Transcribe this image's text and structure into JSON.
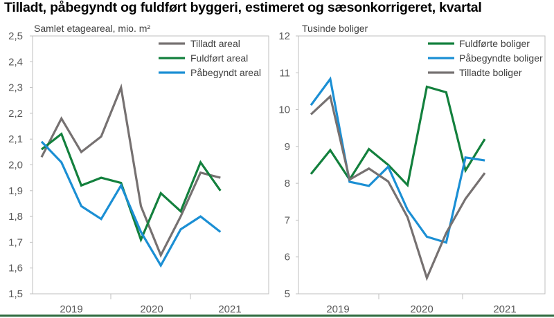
{
  "title": "Tilladt, påbegyndt og fuldført byggeri, estimeret og sæsonkorrigeret, kvartal",
  "chart_data": [
    {
      "type": "line",
      "ylabel": "Samlet etageareal, mio. m²",
      "ylim": [
        1.5,
        2.5
      ],
      "yticks": [
        "1,5",
        "1,6",
        "1,7",
        "1,8",
        "1,9",
        "2,0",
        "2,1",
        "2,2",
        "2,3",
        "2,4",
        "2,5"
      ],
      "xtick_labels": [
        "2019",
        "2020",
        "2021"
      ],
      "x": [
        "2018K4",
        "2019K1",
        "2019K2",
        "2019K3",
        "2019K4",
        "2020K1",
        "2020K2",
        "2020K3",
        "2020K4",
        "2021K1"
      ],
      "legend_position": "top-right",
      "series": [
        {
          "name": "Tilladt areal",
          "color": "#767171",
          "values": [
            2.03,
            2.18,
            2.05,
            2.11,
            2.3,
            1.84,
            1.65,
            1.8,
            1.97,
            1.95
          ]
        },
        {
          "name": "Fuldført areal",
          "color": "#13803d",
          "values": [
            2.06,
            2.12,
            1.92,
            1.95,
            1.93,
            1.71,
            1.89,
            1.82,
            2.01,
            1.9
          ]
        },
        {
          "name": "Påbegyndt areal",
          "color": "#1b8fd4",
          "values": [
            2.09,
            2.01,
            1.84,
            1.79,
            1.92,
            1.74,
            1.61,
            1.75,
            1.8,
            1.74
          ]
        }
      ]
    },
    {
      "type": "line",
      "ylabel": "Tusinde boliger",
      "ylim": [
        5,
        12
      ],
      "yticks": [
        "5",
        "6",
        "7",
        "8",
        "9",
        "10",
        "11",
        "12"
      ],
      "xtick_labels": [
        "2019",
        "2020",
        "2021"
      ],
      "x": [
        "2018K4",
        "2019K1",
        "2019K2",
        "2019K3",
        "2019K4",
        "2020K1",
        "2020K2",
        "2020K3",
        "2020K4",
        "2021K1"
      ],
      "legend_position": "top-right",
      "series": [
        {
          "name": "Fuldførte boliger",
          "color": "#13803d",
          "values": [
            8.25,
            8.9,
            8.1,
            8.93,
            8.5,
            7.95,
            10.62,
            10.47,
            8.35,
            9.2
          ]
        },
        {
          "name": "Påbegyndte boliger",
          "color": "#1b8fd4",
          "values": [
            10.12,
            10.83,
            8.04,
            7.93,
            8.45,
            7.28,
            6.55,
            6.39,
            8.7,
            8.62
          ]
        },
        {
          "name": "Tilladte boliger",
          "color": "#767171",
          "values": [
            9.87,
            10.36,
            8.1,
            8.4,
            8.05,
            7.08,
            5.43,
            6.65,
            7.58,
            8.28
          ]
        }
      ]
    }
  ]
}
